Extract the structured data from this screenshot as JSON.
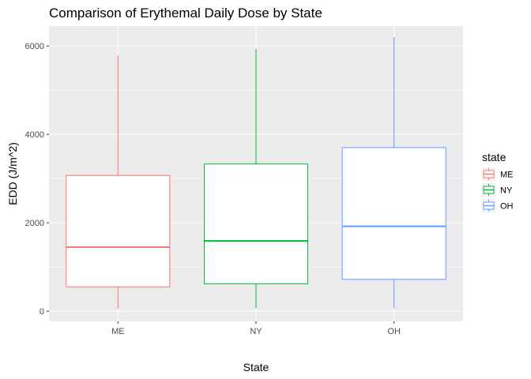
{
  "chart_data": {
    "type": "boxplot",
    "title": "Comparison of Erythemal Daily Dose by State",
    "xlabel": "State",
    "ylabel": "EDD (J/m^2)",
    "categories": [
      "ME",
      "NY",
      "OH"
    ],
    "ylim": [
      -230,
      6450
    ],
    "yticks": [
      0,
      2000,
      4000,
      6000
    ],
    "ytick_labels": [
      "0",
      "2000",
      "4000",
      "6000"
    ],
    "grid": true,
    "legend": {
      "title": "state",
      "position": "right",
      "items": [
        "ME",
        "NY",
        "OH"
      ]
    },
    "series": [
      {
        "name": "ME",
        "color": "#F8766D",
        "min": 50,
        "q1": 550,
        "median": 1450,
        "q3": 3070,
        "max": 5780
      },
      {
        "name": "NY",
        "color": "#00BA38",
        "min": 70,
        "q1": 620,
        "median": 1590,
        "q3": 3330,
        "max": 5930
      },
      {
        "name": "OH",
        "color": "#619CFF",
        "min": 70,
        "q1": 720,
        "median": 1920,
        "q3": 3700,
        "max": 6200
      }
    ]
  }
}
